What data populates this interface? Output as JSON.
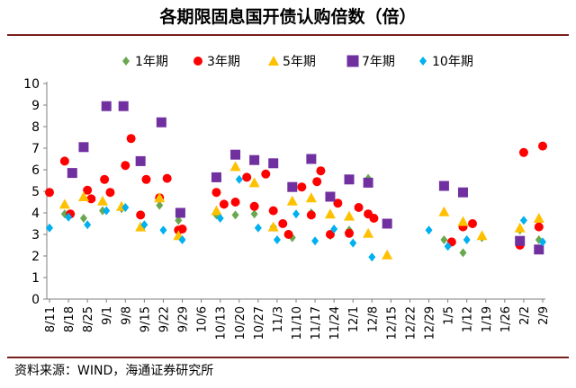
{
  "title": "各期限固息国开债认购倍数（倍）",
  "source": "资料来源：WIND，海通证券研究所",
  "chart_data": {
    "type": "scatter",
    "title": "各期限固息国开债认购倍数（倍）",
    "xlabel": "",
    "ylabel": "",
    "ylim": [
      0,
      10
    ],
    "yticks": [
      0,
      1,
      2,
      3,
      4,
      5,
      6,
      7,
      8,
      9,
      10
    ],
    "grid": false,
    "legend_position": "top",
    "categories": [
      "8/11",
      "8/18",
      "8/25",
      "9/1",
      "9/8",
      "9/15",
      "9/22",
      "9/29",
      "10/6",
      "10/13",
      "10/20",
      "10/27",
      "11/3",
      "11/10",
      "11/17",
      "11/24",
      "12/1",
      "12/8",
      "12/15",
      "12/22",
      "12/29",
      "1/5",
      "1/12",
      "1/19",
      "1/26",
      "2/2",
      "2/9"
    ],
    "series": [
      {
        "name": "1年期",
        "marker": "diamond",
        "color": "#6aa84f",
        "points": [
          [
            0.8,
            3.95
          ],
          [
            1.8,
            3.75
          ],
          [
            2.8,
            4.1
          ],
          [
            3.8,
            4.2
          ],
          [
            4.8,
            3.9
          ],
          [
            5.8,
            4.35
          ],
          [
            6.8,
            3.65
          ],
          [
            8.8,
            3.9
          ],
          [
            9.8,
            3.9
          ],
          [
            10.8,
            3.95
          ],
          [
            11.8,
            3.35
          ],
          [
            12.8,
            2.85
          ],
          [
            13.8,
            4.0
          ],
          [
            14.8,
            2.95
          ],
          [
            15.8,
            3.2
          ],
          [
            16.8,
            5.6
          ],
          [
            20.8,
            2.75
          ],
          [
            21.8,
            2.15
          ],
          [
            22.8,
            2.85
          ],
          [
            24.8,
            3.2
          ],
          [
            25.8,
            2.75
          ]
        ]
      },
      {
        "name": "3年期",
        "marker": "circle",
        "color": "#ff0000",
        "points": [
          [
            0.0,
            4.95
          ],
          [
            0.8,
            6.4
          ],
          [
            1.1,
            3.95
          ],
          [
            2.0,
            5.05
          ],
          [
            2.2,
            4.65
          ],
          [
            2.9,
            5.55
          ],
          [
            3.2,
            4.95
          ],
          [
            4.0,
            6.2
          ],
          [
            4.3,
            7.45
          ],
          [
            4.8,
            3.9
          ],
          [
            5.1,
            5.55
          ],
          [
            5.8,
            4.7
          ],
          [
            6.2,
            5.6
          ],
          [
            6.8,
            3.2
          ],
          [
            7.0,
            3.25
          ],
          [
            8.8,
            4.95
          ],
          [
            9.2,
            4.4
          ],
          [
            9.8,
            4.5
          ],
          [
            10.4,
            5.65
          ],
          [
            10.8,
            4.3
          ],
          [
            11.4,
            5.8
          ],
          [
            11.8,
            4.1
          ],
          [
            12.3,
            3.5
          ],
          [
            12.6,
            3.0
          ],
          [
            13.3,
            5.2
          ],
          [
            13.8,
            3.9
          ],
          [
            14.1,
            5.45
          ],
          [
            14.3,
            5.95
          ],
          [
            14.8,
            3.0
          ],
          [
            15.2,
            4.45
          ],
          [
            15.8,
            3.05
          ],
          [
            16.3,
            4.25
          ],
          [
            16.8,
            3.95
          ],
          [
            17.1,
            3.75
          ],
          [
            21.2,
            2.65
          ],
          [
            21.8,
            3.35
          ],
          [
            22.3,
            3.5
          ],
          [
            24.8,
            2.5
          ],
          [
            25.0,
            6.8
          ],
          [
            25.8,
            3.35
          ],
          [
            26.0,
            7.1
          ]
        ]
      },
      {
        "name": "5年期",
        "marker": "triangle",
        "color": "#ffc000",
        "points": [
          [
            0.8,
            4.4
          ],
          [
            1.8,
            4.75
          ],
          [
            2.8,
            4.55
          ],
          [
            3.8,
            4.3
          ],
          [
            4.8,
            3.35
          ],
          [
            5.8,
            4.7
          ],
          [
            6.8,
            2.95
          ],
          [
            8.8,
            4.1
          ],
          [
            9.8,
            6.15
          ],
          [
            10.8,
            5.4
          ],
          [
            11.8,
            3.35
          ],
          [
            12.8,
            4.55
          ],
          [
            13.8,
            4.7
          ],
          [
            14.8,
            3.95
          ],
          [
            15.8,
            3.85
          ],
          [
            16.8,
            3.05
          ],
          [
            17.8,
            2.05
          ],
          [
            20.8,
            4.05
          ],
          [
            21.8,
            3.6
          ],
          [
            22.8,
            2.95
          ],
          [
            24.8,
            3.3
          ],
          [
            25.8,
            3.75
          ]
        ]
      },
      {
        "name": "7年期",
        "marker": "square",
        "color": "#7030a0",
        "points": [
          [
            1.8,
            7.05
          ],
          [
            1.2,
            5.85
          ],
          [
            3.0,
            8.95
          ],
          [
            3.9,
            8.95
          ],
          [
            4.8,
            6.4
          ],
          [
            5.9,
            8.2
          ],
          [
            6.9,
            4.0
          ],
          [
            8.8,
            5.65
          ],
          [
            9.8,
            6.7
          ],
          [
            10.8,
            6.45
          ],
          [
            11.8,
            6.3
          ],
          [
            12.8,
            5.2
          ],
          [
            13.8,
            6.5
          ],
          [
            14.8,
            4.75
          ],
          [
            15.8,
            5.55
          ],
          [
            16.8,
            5.4
          ],
          [
            17.8,
            3.5
          ],
          [
            20.8,
            5.25
          ],
          [
            21.8,
            4.95
          ],
          [
            24.8,
            2.7
          ],
          [
            25.8,
            2.3
          ]
        ]
      },
      {
        "name": "10年期",
        "marker": "diamond",
        "color": "#00b0f0",
        "points": [
          [
            0.0,
            3.3
          ],
          [
            1.0,
            3.8
          ],
          [
            2.0,
            3.45
          ],
          [
            3.0,
            4.1
          ],
          [
            4.0,
            4.25
          ],
          [
            5.0,
            3.45
          ],
          [
            6.0,
            3.2
          ],
          [
            7.0,
            2.75
          ],
          [
            9.0,
            3.75
          ],
          [
            10.0,
            5.55
          ],
          [
            11.0,
            3.3
          ],
          [
            12.0,
            2.75
          ],
          [
            13.0,
            3.95
          ],
          [
            14.0,
            2.7
          ],
          [
            15.0,
            3.25
          ],
          [
            16.0,
            2.6
          ],
          [
            17.0,
            1.95
          ],
          [
            20.0,
            3.2
          ],
          [
            21.0,
            2.45
          ],
          [
            22.0,
            2.75
          ],
          [
            25.0,
            3.65
          ],
          [
            26.0,
            2.65
          ]
        ]
      }
    ]
  }
}
